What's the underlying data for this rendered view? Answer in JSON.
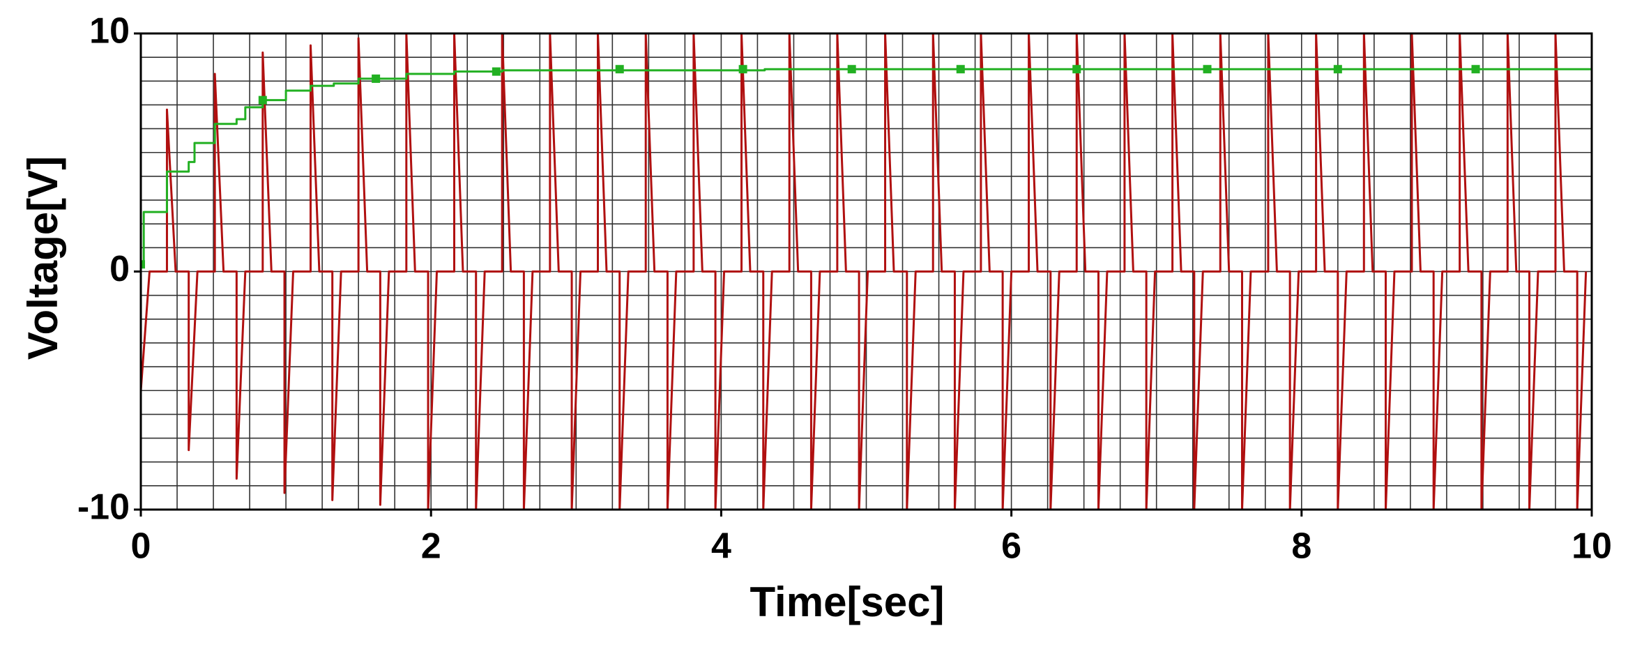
{
  "chart_data": {
    "type": "line",
    "x_label": "Time[sec]",
    "y_label": "Voltage[V]",
    "xlim": [
      0,
      10
    ],
    "ylim": [
      -10,
      10
    ],
    "xticks": [
      0,
      2,
      4,
      6,
      8,
      10
    ],
    "yticks": [
      -10,
      0,
      10
    ],
    "grid": true,
    "xgrid": [
      0,
      0.25,
      0.5,
      0.75,
      1,
      1.25,
      1.5,
      1.75,
      2,
      2.25,
      2.5,
      2.75,
      3,
      3.25,
      3.5,
      3.75,
      4,
      4.25,
      4.5,
      4.75,
      5,
      5.25,
      5.5,
      5.75,
      6,
      6.25,
      6.5,
      6.75,
      7,
      7.25,
      7.5,
      7.75,
      8,
      8.25,
      8.5,
      8.75,
      9,
      9.25,
      9.5,
      9.75,
      10
    ],
    "ygrid": [
      -10,
      -9,
      -8,
      -7,
      -6,
      -5,
      -4,
      -3,
      -2,
      -1,
      0,
      1,
      2,
      3,
      4,
      5,
      6,
      7,
      8,
      9,
      10
    ],
    "series": [
      {
        "color": "#b01010",
        "marker": "none",
        "x": [
          0,
          0,
          0.06,
          0.18,
          0.18,
          0.24,
          0.33,
          0.33,
          0.39,
          0.51,
          0.51,
          0.57,
          0.66,
          0.66,
          0.72,
          0.84,
          0.84,
          0.9,
          0.99,
          0.99,
          1.05,
          1.17,
          1.17,
          1.23,
          1.32,
          1.32,
          1.38,
          1.5,
          1.5,
          1.56,
          1.65,
          1.65,
          1.71,
          1.83,
          1.83,
          1.89,
          1.98,
          1.98,
          2.04,
          2.16,
          2.16,
          2.22,
          2.31,
          2.31,
          2.37,
          2.49,
          2.49,
          2.55,
          2.64,
          2.64,
          2.7,
          2.82,
          2.82,
          2.88,
          2.97,
          2.97,
          3.03,
          3.15,
          3.15,
          3.21,
          3.3,
          3.3,
          3.36,
          3.48,
          3.48,
          3.54,
          3.63,
          3.63,
          3.69,
          3.81,
          3.81,
          3.87,
          3.96,
          3.96,
          4.02,
          4.14,
          4.14,
          4.2,
          4.29,
          4.29,
          4.35,
          4.47,
          4.47,
          4.53,
          4.62,
          4.62,
          4.68,
          4.8,
          4.8,
          4.86,
          4.95,
          4.95,
          5.01,
          5.13,
          5.13,
          5.19,
          5.28,
          5.28,
          5.34,
          5.46,
          5.46,
          5.52,
          5.61,
          5.61,
          5.67,
          5.79,
          5.79,
          5.85,
          5.94,
          5.94,
          6.0,
          6.12,
          6.12,
          6.18,
          6.27,
          6.27,
          6.33,
          6.45,
          6.45,
          6.51,
          6.6,
          6.6,
          6.66,
          6.78,
          6.78,
          6.84,
          6.93,
          6.93,
          6.99,
          7.11,
          7.11,
          7.17,
          7.26,
          7.26,
          7.32,
          7.44,
          7.44,
          7.5,
          7.59,
          7.59,
          7.65,
          7.77,
          7.77,
          7.83,
          7.92,
          7.92,
          7.98,
          8.1,
          8.1,
          8.16,
          8.25,
          8.25,
          8.31,
          8.43,
          8.43,
          8.49,
          8.58,
          8.58,
          8.64,
          8.76,
          8.76,
          8.82,
          8.91,
          8.91,
          8.97,
          9.09,
          9.09,
          9.15,
          9.24,
          9.24,
          9.3,
          9.42,
          9.42,
          9.48,
          9.57,
          9.57,
          9.63,
          9.75,
          9.75,
          9.81,
          9.9,
          9.9,
          9.96
        ],
        "values": [
          0,
          -5,
          0,
          0,
          6.8,
          0,
          0,
          -7.5,
          0,
          0,
          8.3,
          0,
          0,
          -8.7,
          0,
          0,
          9.2,
          0,
          0,
          -9.3,
          0,
          0,
          9.5,
          0,
          0,
          -9.6,
          0,
          0,
          9.8,
          0,
          0,
          -9.8,
          0,
          0,
          10,
          0,
          0,
          -10,
          0,
          0,
          10,
          0,
          0,
          -10,
          0,
          0,
          10,
          0,
          0,
          -10,
          0,
          0,
          10,
          0,
          0,
          -10,
          0,
          0,
          10,
          0,
          0,
          -10,
          0,
          0,
          10,
          0,
          0,
          -10,
          0,
          0,
          10,
          0,
          0,
          -10,
          0,
          0,
          10,
          0,
          0,
          -10,
          0,
          0,
          10,
          0,
          0,
          -10,
          0,
          0,
          10,
          0,
          0,
          -10,
          0,
          0,
          10,
          0,
          0,
          -10,
          0,
          0,
          10,
          0,
          0,
          -10,
          0,
          0,
          10,
          0,
          0,
          -10,
          0,
          0,
          10,
          0,
          0,
          -10,
          0,
          0,
          10,
          0,
          0,
          -10,
          0,
          0,
          10,
          0,
          0,
          -10,
          0,
          0,
          10,
          0,
          0,
          -10,
          0,
          0,
          10,
          0,
          0,
          -10,
          0,
          0,
          10,
          0,
          0,
          -10,
          0,
          0,
          10,
          0,
          0,
          -10,
          0,
          0,
          10,
          0,
          0,
          -10,
          0,
          0,
          10,
          0,
          0,
          -10,
          0,
          0,
          10,
          0,
          0,
          -10,
          0,
          0,
          10,
          0,
          0,
          -10,
          0,
          0,
          10,
          0,
          0,
          -10,
          0
        ]
      },
      {
        "color": "#22b022",
        "marker": "none",
        "x": [
          0,
          0.02,
          0.02,
          0.18,
          0.18,
          0.33,
          0.33,
          0.37,
          0.37,
          0.51,
          0.51,
          0.66,
          0.66,
          0.72,
          0.72,
          0.84,
          0.84,
          1.0,
          1.0,
          1.17,
          1.17,
          1.33,
          1.33,
          1.5,
          1.5,
          1.83,
          1.83,
          2.16,
          2.16,
          2.49,
          2.49,
          4.3,
          4.3,
          10
        ],
        "values": [
          0.3,
          0.3,
          2.5,
          2.5,
          4.2,
          4.2,
          4.6,
          4.6,
          5.4,
          5.4,
          6.2,
          6.2,
          6.4,
          6.4,
          6.9,
          6.9,
          7.2,
          7.2,
          7.6,
          7.6,
          7.8,
          7.8,
          7.9,
          7.9,
          8.1,
          8.1,
          8.3,
          8.3,
          8.4,
          8.4,
          8.45,
          8.45,
          8.5,
          8.5
        ]
      },
      {
        "color": "#22b022",
        "marker": "square",
        "x": [
          0,
          0.84,
          1.62,
          2.45,
          3.3,
          4.15,
          4.9,
          5.65,
          6.45,
          7.35,
          8.25,
          9.2
        ],
        "values": [
          0.3,
          7.2,
          8.1,
          8.4,
          8.5,
          8.5,
          8.5,
          8.5,
          8.5,
          8.5,
          8.5,
          8.5
        ]
      }
    ]
  }
}
